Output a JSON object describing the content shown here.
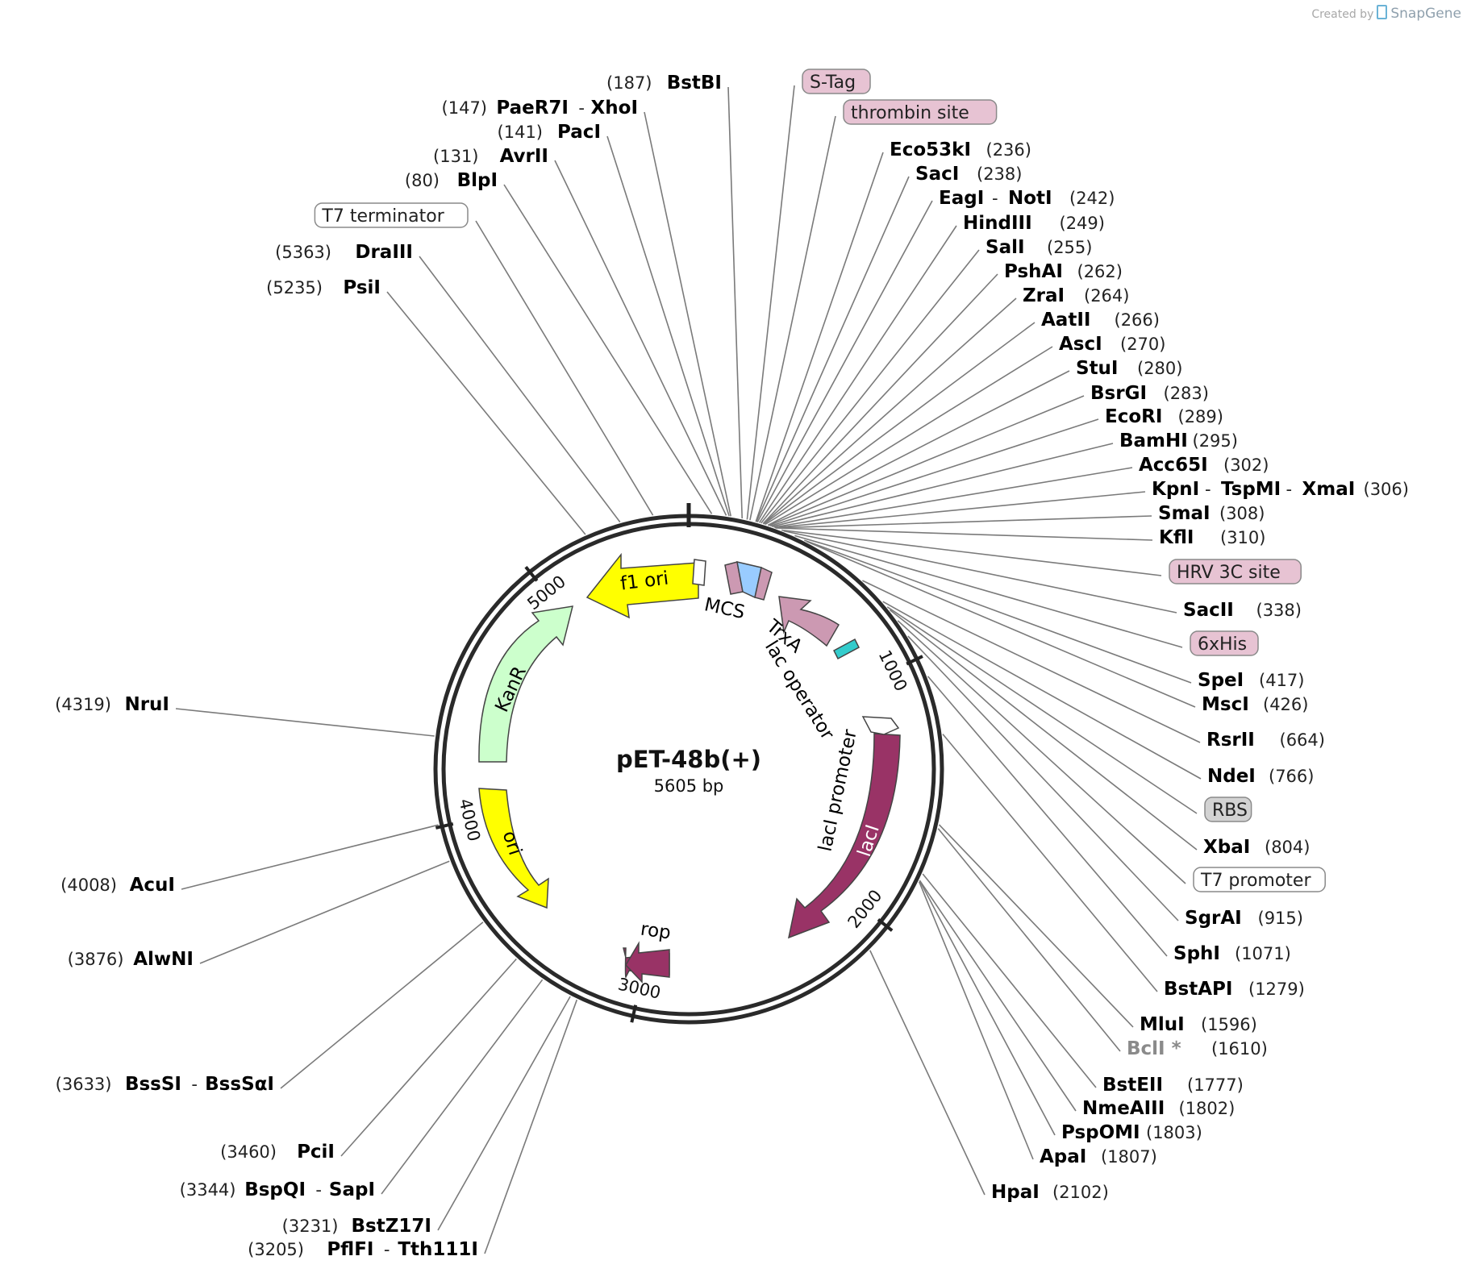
{
  "brand": {
    "created_by": "Created by",
    "name": "SnapGene"
  },
  "plasmid": {
    "name": "pET-48b(+)",
    "size": "5605 bp",
    "length": 5605
  },
  "ticks": [
    {
      "pos": 1000,
      "label": "1000"
    },
    {
      "pos": 2000,
      "label": "2000"
    },
    {
      "pos": 3000,
      "label": "3000"
    },
    {
      "pos": 4000,
      "label": "4000"
    },
    {
      "pos": 5000,
      "label": "5000"
    }
  ],
  "features": [
    {
      "name": "f1 ori",
      "type": "arrow",
      "color": "#ffff00",
      "text_color": "#000000"
    },
    {
      "name": "KanR",
      "type": "arrow",
      "color": "#ccffcc",
      "text_color": "#000000"
    },
    {
      "name": "ori",
      "type": "arrow",
      "color": "#ffff00",
      "text_color": "#000000"
    },
    {
      "name": "rop",
      "type": "arrow",
      "color": "#993366",
      "text_color": "#000000"
    },
    {
      "name": "lacI",
      "type": "arrow",
      "color": "#993366",
      "text_color": "#ffffff"
    },
    {
      "name": "lacI promoter",
      "type": "arrow",
      "color": "#ffffff",
      "text_color": "#000000"
    },
    {
      "name": "TrxA",
      "type": "arrow",
      "color": "#cc99b2",
      "text_color": "#000000"
    },
    {
      "name": "lac operator",
      "type": "box",
      "color": "#33cccc",
      "text_color": "#000000"
    },
    {
      "name": "MCS",
      "type": "box",
      "color": "#99ccff",
      "text_color": "#000000"
    }
  ],
  "left_labels": [
    {
      "pos": "(187)",
      "names": [
        "BstBI"
      ]
    },
    {
      "pos": "(147)",
      "names": [
        "PaeR7I",
        "XhoI"
      ]
    },
    {
      "pos": "(141)",
      "names": [
        "PacI"
      ]
    },
    {
      "pos": "(131)",
      "names": [
        "AvrII"
      ]
    },
    {
      "pos": "(80)",
      "names": [
        "BlpI"
      ]
    },
    {
      "feature": "T7 terminator"
    },
    {
      "pos": "(5363)",
      "names": [
        "DraIII"
      ]
    },
    {
      "pos": "(5235)",
      "names": [
        "PsiI"
      ]
    },
    {
      "pos": "(4319)",
      "names": [
        "NruI"
      ]
    },
    {
      "pos": "(4008)",
      "names": [
        "AcuI"
      ]
    },
    {
      "pos": "(3876)",
      "names": [
        "AlwNI"
      ]
    },
    {
      "pos": "(3633)",
      "names": [
        "BssSI",
        "BssSαI"
      ]
    },
    {
      "pos": "(3460)",
      "names": [
        "PciI"
      ]
    },
    {
      "pos": "(3344)",
      "names": [
        "BspQI",
        "SapI"
      ]
    },
    {
      "pos": "(3231)",
      "names": [
        "BstZ17I"
      ]
    },
    {
      "pos": "(3205)",
      "names": [
        "PflFI",
        "Tth111I"
      ]
    }
  ],
  "right_labels": [
    {
      "feature": "S-Tag",
      "style": "pink"
    },
    {
      "feature": "thrombin site",
      "style": "pink"
    },
    {
      "pos": "(236)",
      "names": [
        "Eco53kI"
      ]
    },
    {
      "pos": "(238)",
      "names": [
        "SacI"
      ]
    },
    {
      "pos": "(242)",
      "names": [
        "EagI",
        "NotI"
      ]
    },
    {
      "pos": "(249)",
      "names": [
        "HindIII"
      ]
    },
    {
      "pos": "(255)",
      "names": [
        "SalI"
      ]
    },
    {
      "pos": "(262)",
      "names": [
        "PshAI"
      ]
    },
    {
      "pos": "(264)",
      "names": [
        "ZraI"
      ]
    },
    {
      "pos": "(266)",
      "names": [
        "AatII"
      ]
    },
    {
      "pos": "(270)",
      "names": [
        "AscI"
      ]
    },
    {
      "pos": "(280)",
      "names": [
        "StuI"
      ]
    },
    {
      "pos": "(283)",
      "names": [
        "BsrGI"
      ]
    },
    {
      "pos": "(289)",
      "names": [
        "EcoRI"
      ]
    },
    {
      "pos": "(295)",
      "names": [
        "BamHI"
      ]
    },
    {
      "pos": "(302)",
      "names": [
        "Acc65I"
      ]
    },
    {
      "pos": "(306)",
      "names": [
        "KpnI",
        "TspMI",
        "XmaI"
      ]
    },
    {
      "pos": "(308)",
      "names": [
        "SmaI"
      ]
    },
    {
      "pos": "(310)",
      "names": [
        "KflI"
      ]
    },
    {
      "feature": "HRV 3C site",
      "style": "pink"
    },
    {
      "pos": "(338)",
      "names": [
        "SacII"
      ]
    },
    {
      "feature": "6xHis",
      "style": "pink"
    },
    {
      "pos": "(417)",
      "names": [
        "SpeI"
      ]
    },
    {
      "pos": "(426)",
      "names": [
        "MscI"
      ]
    },
    {
      "pos": "(664)",
      "names": [
        "RsrII"
      ]
    },
    {
      "pos": "(766)",
      "names": [
        "NdeI"
      ]
    },
    {
      "feature": "RBS",
      "style": "grey"
    },
    {
      "pos": "(804)",
      "names": [
        "XbaI"
      ]
    },
    {
      "feature": "T7 promoter",
      "style": "white"
    },
    {
      "pos": "(915)",
      "names": [
        "SgrAI"
      ]
    },
    {
      "pos": "(1071)",
      "names": [
        "SphI"
      ]
    },
    {
      "pos": "(1279)",
      "names": [
        "BstAPI"
      ]
    },
    {
      "pos": "(1596)",
      "names": [
        "MluI"
      ]
    },
    {
      "pos": "(1610)",
      "names": [
        "BclI *"
      ],
      "dim": true
    },
    {
      "pos": "(1777)",
      "names": [
        "BstEII"
      ]
    },
    {
      "pos": "(1802)",
      "names": [
        "NmeAIII"
      ]
    },
    {
      "pos": "(1803)",
      "names": [
        "PspOMI"
      ]
    },
    {
      "pos": "(1807)",
      "names": [
        "ApaI"
      ]
    },
    {
      "pos": "(2102)",
      "names": [
        "HpaI"
      ]
    }
  ]
}
